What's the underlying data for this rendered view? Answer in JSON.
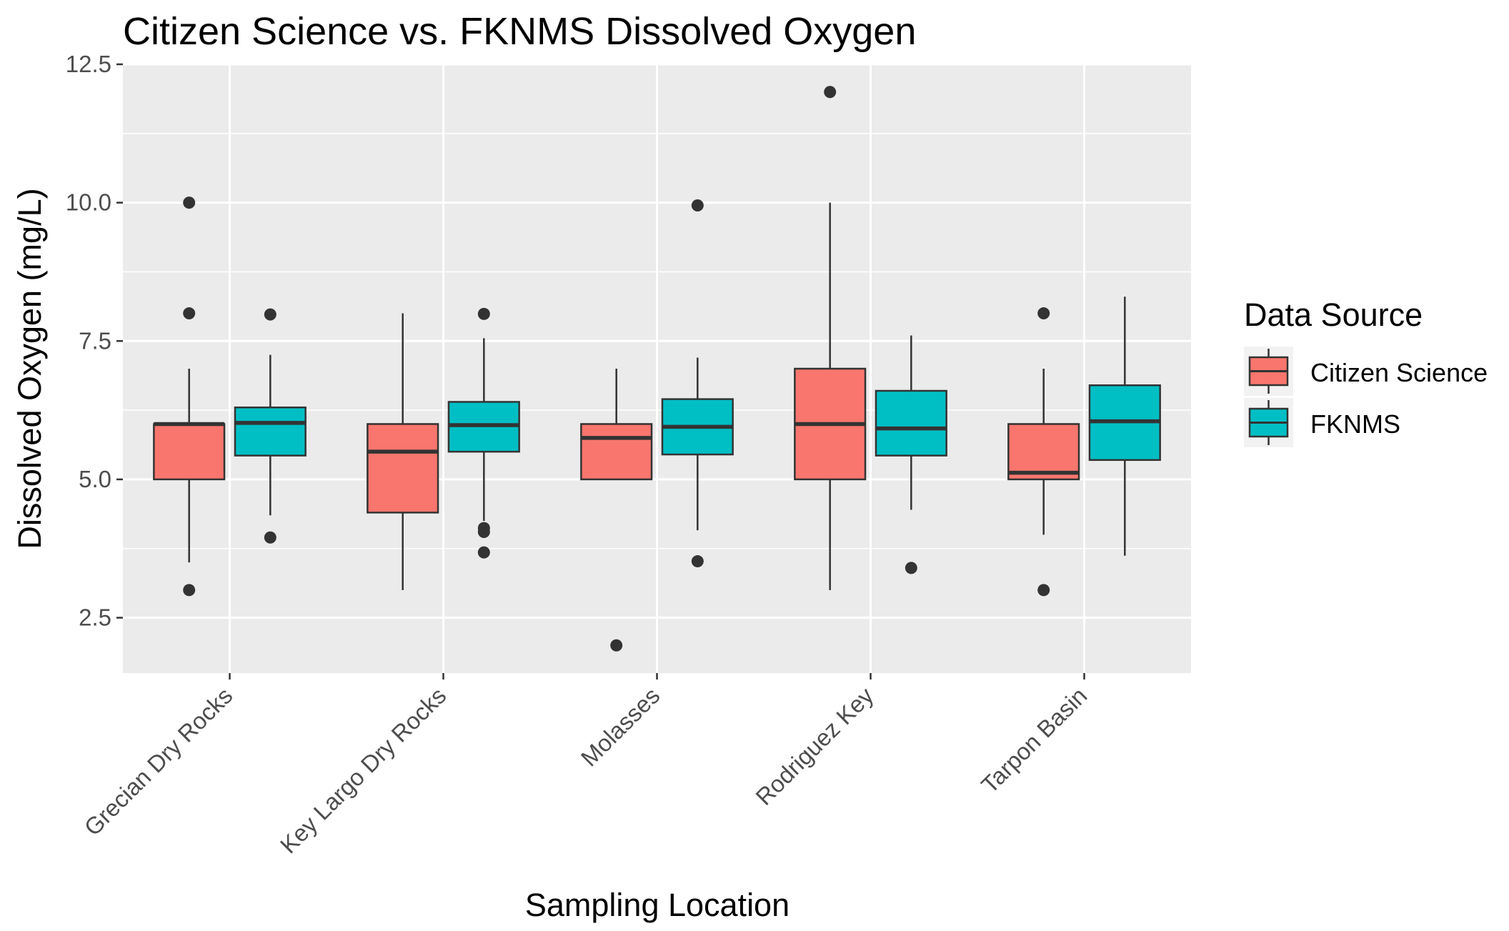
{
  "chart_data": {
    "type": "boxplot",
    "title": "Citizen Science vs. FKNMS Dissolved Oxygen",
    "xlabel": "Sampling Location",
    "ylabel": "Dissolved Oxygen (mg/L)",
    "ylim": [
      1.5,
      12.5
    ],
    "yticks": [
      "2.5",
      "5.0",
      "7.5",
      "10.0",
      "12.5"
    ],
    "grid": true,
    "legend_position": "right",
    "legend_title": "Data Source",
    "categories": [
      "Grecian Dry Rocks",
      "Key Largo Dry Rocks",
      "Molasses",
      "Rodriguez Key",
      "Tarpon Basin"
    ],
    "series": [
      {
        "name": "Citizen Science",
        "color": "#F8766D",
        "boxes": [
          {
            "whisker_low": 3.5,
            "q1": 5.0,
            "median": 6.0,
            "q3": 6.0,
            "whisker_high": 7.0,
            "outliers": [
              3.0,
              8.0,
              10.0
            ]
          },
          {
            "whisker_low": 3.0,
            "q1": 4.4,
            "median": 5.5,
            "q3": 6.0,
            "whisker_high": 8.0,
            "outliers": []
          },
          {
            "whisker_low": 5.0,
            "q1": 5.0,
            "median": 5.75,
            "q3": 6.0,
            "whisker_high": 7.0,
            "outliers": [
              2.0
            ]
          },
          {
            "whisker_low": 3.0,
            "q1": 5.0,
            "median": 6.0,
            "q3": 7.0,
            "whisker_high": 10.0,
            "outliers": [
              12.0
            ]
          },
          {
            "whisker_low": 4.0,
            "q1": 5.0,
            "median": 5.12,
            "q3": 6.0,
            "whisker_high": 7.0,
            "outliers": [
              3.0,
              8.0
            ]
          }
        ]
      },
      {
        "name": "FKNMS",
        "color": "#00BFC4",
        "boxes": [
          {
            "whisker_low": 4.35,
            "q1": 5.43,
            "median": 6.02,
            "q3": 6.3,
            "whisker_high": 7.25,
            "outliers": [
              3.95,
              7.98
            ]
          },
          {
            "whisker_low": 4.25,
            "q1": 5.5,
            "median": 5.98,
            "q3": 6.4,
            "whisker_high": 7.55,
            "outliers": [
              3.68,
              4.05,
              4.12,
              7.99
            ]
          },
          {
            "whisker_low": 4.08,
            "q1": 5.45,
            "median": 5.95,
            "q3": 6.45,
            "whisker_high": 7.2,
            "outliers": [
              3.52,
              9.95
            ]
          },
          {
            "whisker_low": 4.45,
            "q1": 5.43,
            "median": 5.92,
            "q3": 6.6,
            "whisker_high": 7.6,
            "outliers": [
              3.4
            ]
          },
          {
            "whisker_low": 3.62,
            "q1": 5.35,
            "median": 6.05,
            "q3": 6.7,
            "whisker_high": 8.3,
            "outliers": []
          }
        ]
      }
    ]
  }
}
